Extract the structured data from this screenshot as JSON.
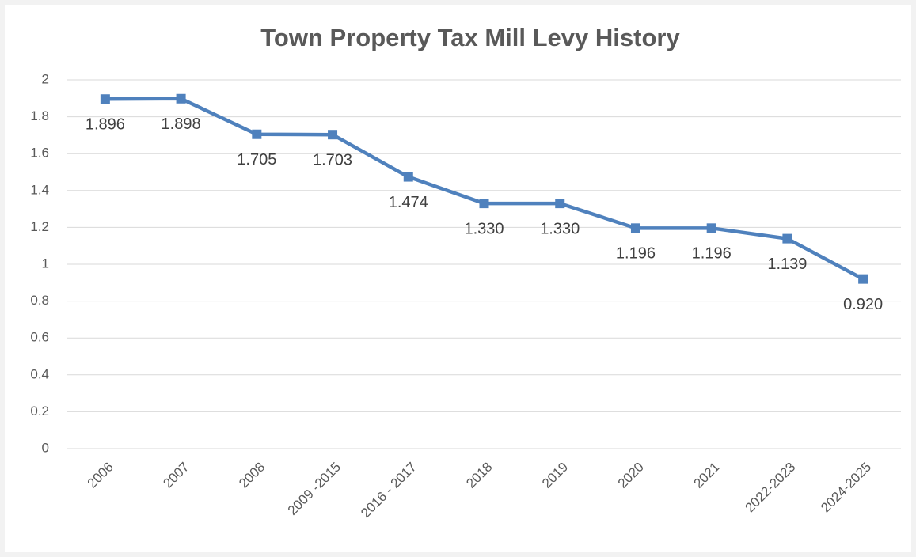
{
  "chart_data": {
    "type": "line",
    "title": "Town Property Tax Mill Levy History",
    "categories": [
      "2006",
      "2007",
      "2008",
      "2009 -2015",
      "2016 - 2017",
      "2018",
      "2019",
      "2020",
      "2021",
      "2022-2023",
      "2024-2025"
    ],
    "values": [
      1.896,
      1.898,
      1.705,
      1.703,
      1.474,
      1.33,
      1.33,
      1.196,
      1.196,
      1.139,
      0.92
    ],
    "value_labels": [
      "1.896",
      "1.898",
      "1.705",
      "1.703",
      "1.474",
      "1.330",
      "1.330",
      "1.196",
      "1.196",
      "1.139",
      "0.920"
    ],
    "color": "#4f81bd",
    "ylim": [
      0,
      2
    ],
    "yticks": [
      0,
      0.2,
      0.4,
      0.6,
      0.8,
      1,
      1.2,
      1.4,
      1.6,
      1.8,
      2
    ],
    "grid": true
  }
}
